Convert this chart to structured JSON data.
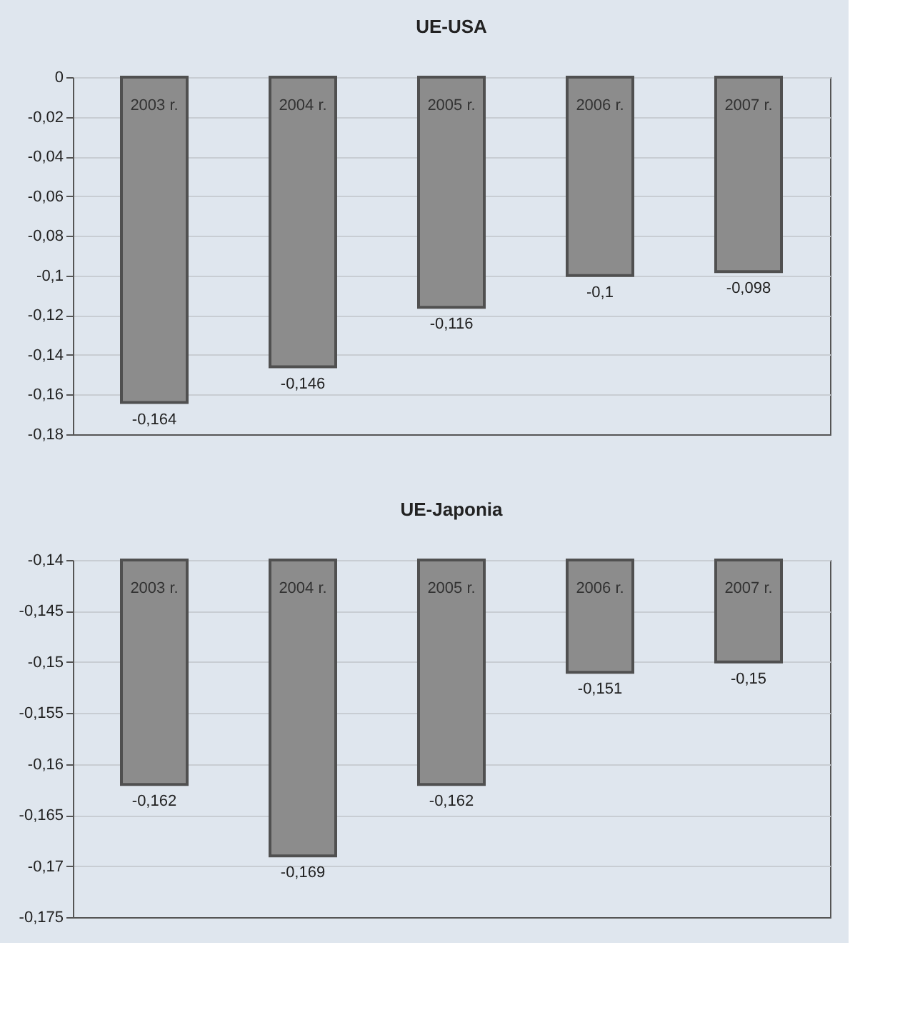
{
  "chart_data": [
    {
      "type": "bar",
      "title": "UE-USA",
      "categories": [
        "2003 r.",
        "2004 r.",
        "2005 r.",
        "2006 r.",
        "2007 r."
      ],
      "values": [
        -0.164,
        -0.146,
        -0.116,
        -0.1,
        -0.098
      ],
      "value_labels": [
        "-0,164",
        "-0,146",
        "-0,116",
        "-0,1",
        "-0,098"
      ],
      "color": "#8c8c8c",
      "ylim": [
        -0.18,
        0
      ],
      "yticks": [
        0,
        {
          "value": -0.02,
          "label": "-0,02"
        },
        {
          "value": -0.04,
          "label": "-0,04"
        },
        {
          "value": -0.06,
          "label": "-0,06"
        },
        {
          "value": -0.08,
          "label": "-0,08"
        },
        {
          "value": -0.1,
          "label": "-0,1"
        },
        {
          "value": -0.12,
          "label": "-0,12"
        },
        {
          "value": -0.14,
          "label": "-0,14"
        },
        {
          "value": -0.16,
          "label": "-0,16"
        },
        {
          "value": -0.18,
          "label": "-0,18"
        }
      ],
      "grid": "y"
    },
    {
      "type": "bar",
      "title": "UE-Japonia",
      "categories": [
        "2003 r.",
        "2004 r.",
        "2005 r.",
        "2006 r.",
        "2007 r."
      ],
      "values": [
        -0.162,
        -0.169,
        -0.162,
        -0.151,
        -0.15
      ],
      "value_labels": [
        "-0,162",
        "-0,169",
        "-0,162",
        "-0,151",
        "-0,15"
      ],
      "color": "#8c8c8c",
      "ylim": [
        -0.175,
        -0.14
      ],
      "yticks": [
        {
          "value": -0.14,
          "label": "-0,14"
        },
        {
          "value": -0.145,
          "label": "-0,145"
        },
        {
          "value": -0.15,
          "label": "-0,15"
        },
        {
          "value": -0.155,
          "label": "-0,155"
        },
        {
          "value": -0.16,
          "label": "-0,16"
        },
        {
          "value": -0.165,
          "label": "-0,165"
        },
        {
          "value": -0.17,
          "label": "-0,17"
        },
        {
          "value": -0.175,
          "label": "-0,175"
        }
      ],
      "grid": "y"
    }
  ]
}
